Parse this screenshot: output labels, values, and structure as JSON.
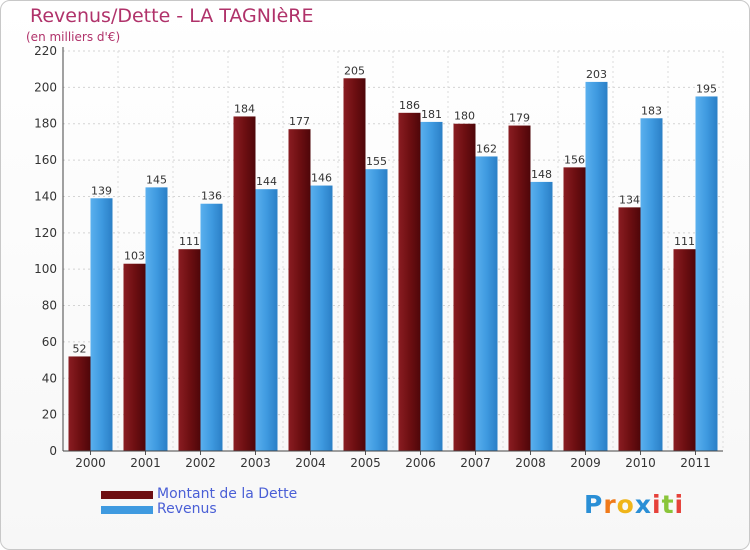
{
  "header": {
    "title": "Revenus/Dette - LA TAGNIèRE",
    "subtitle": "(en milliers d'€)"
  },
  "colors": {
    "debt": "#6e0f12",
    "revenue": "#3f9ae0",
    "title": "#b0326a",
    "legend_text": "#4a5fd6"
  },
  "legend": {
    "items": [
      {
        "label": "Montant de la Dette",
        "color_key": "debt"
      },
      {
        "label": "Revenus",
        "color_key": "revenue"
      }
    ]
  },
  "logo": {
    "letters": [
      "P",
      "r",
      "o",
      "x",
      "i",
      "t",
      "i"
    ],
    "colors": [
      "#2a8fd6",
      "#f07a1a",
      "#f0b51a",
      "#2a8fd6",
      "#e6413a",
      "#8ac53a",
      "#e6413a"
    ]
  },
  "chart_data": {
    "type": "bar",
    "categories": [
      "2000",
      "2001",
      "2002",
      "2003",
      "2004",
      "2005",
      "2006",
      "2007",
      "2008",
      "2009",
      "2010",
      "2011"
    ],
    "series": [
      {
        "name": "Montant de la Dette",
        "values": [
          52,
          103,
          111,
          184,
          177,
          205,
          186,
          180,
          179,
          156,
          134,
          111
        ]
      },
      {
        "name": "Revenus",
        "values": [
          139,
          145,
          136,
          144,
          146,
          155,
          181,
          162,
          148,
          203,
          183,
          195
        ]
      }
    ],
    "ylim": [
      0,
      220
    ],
    "yticks": [
      0,
      20,
      40,
      60,
      80,
      100,
      120,
      140,
      160,
      180,
      200,
      220
    ],
    "grid": true,
    "legend_position": "bottom-left"
  }
}
